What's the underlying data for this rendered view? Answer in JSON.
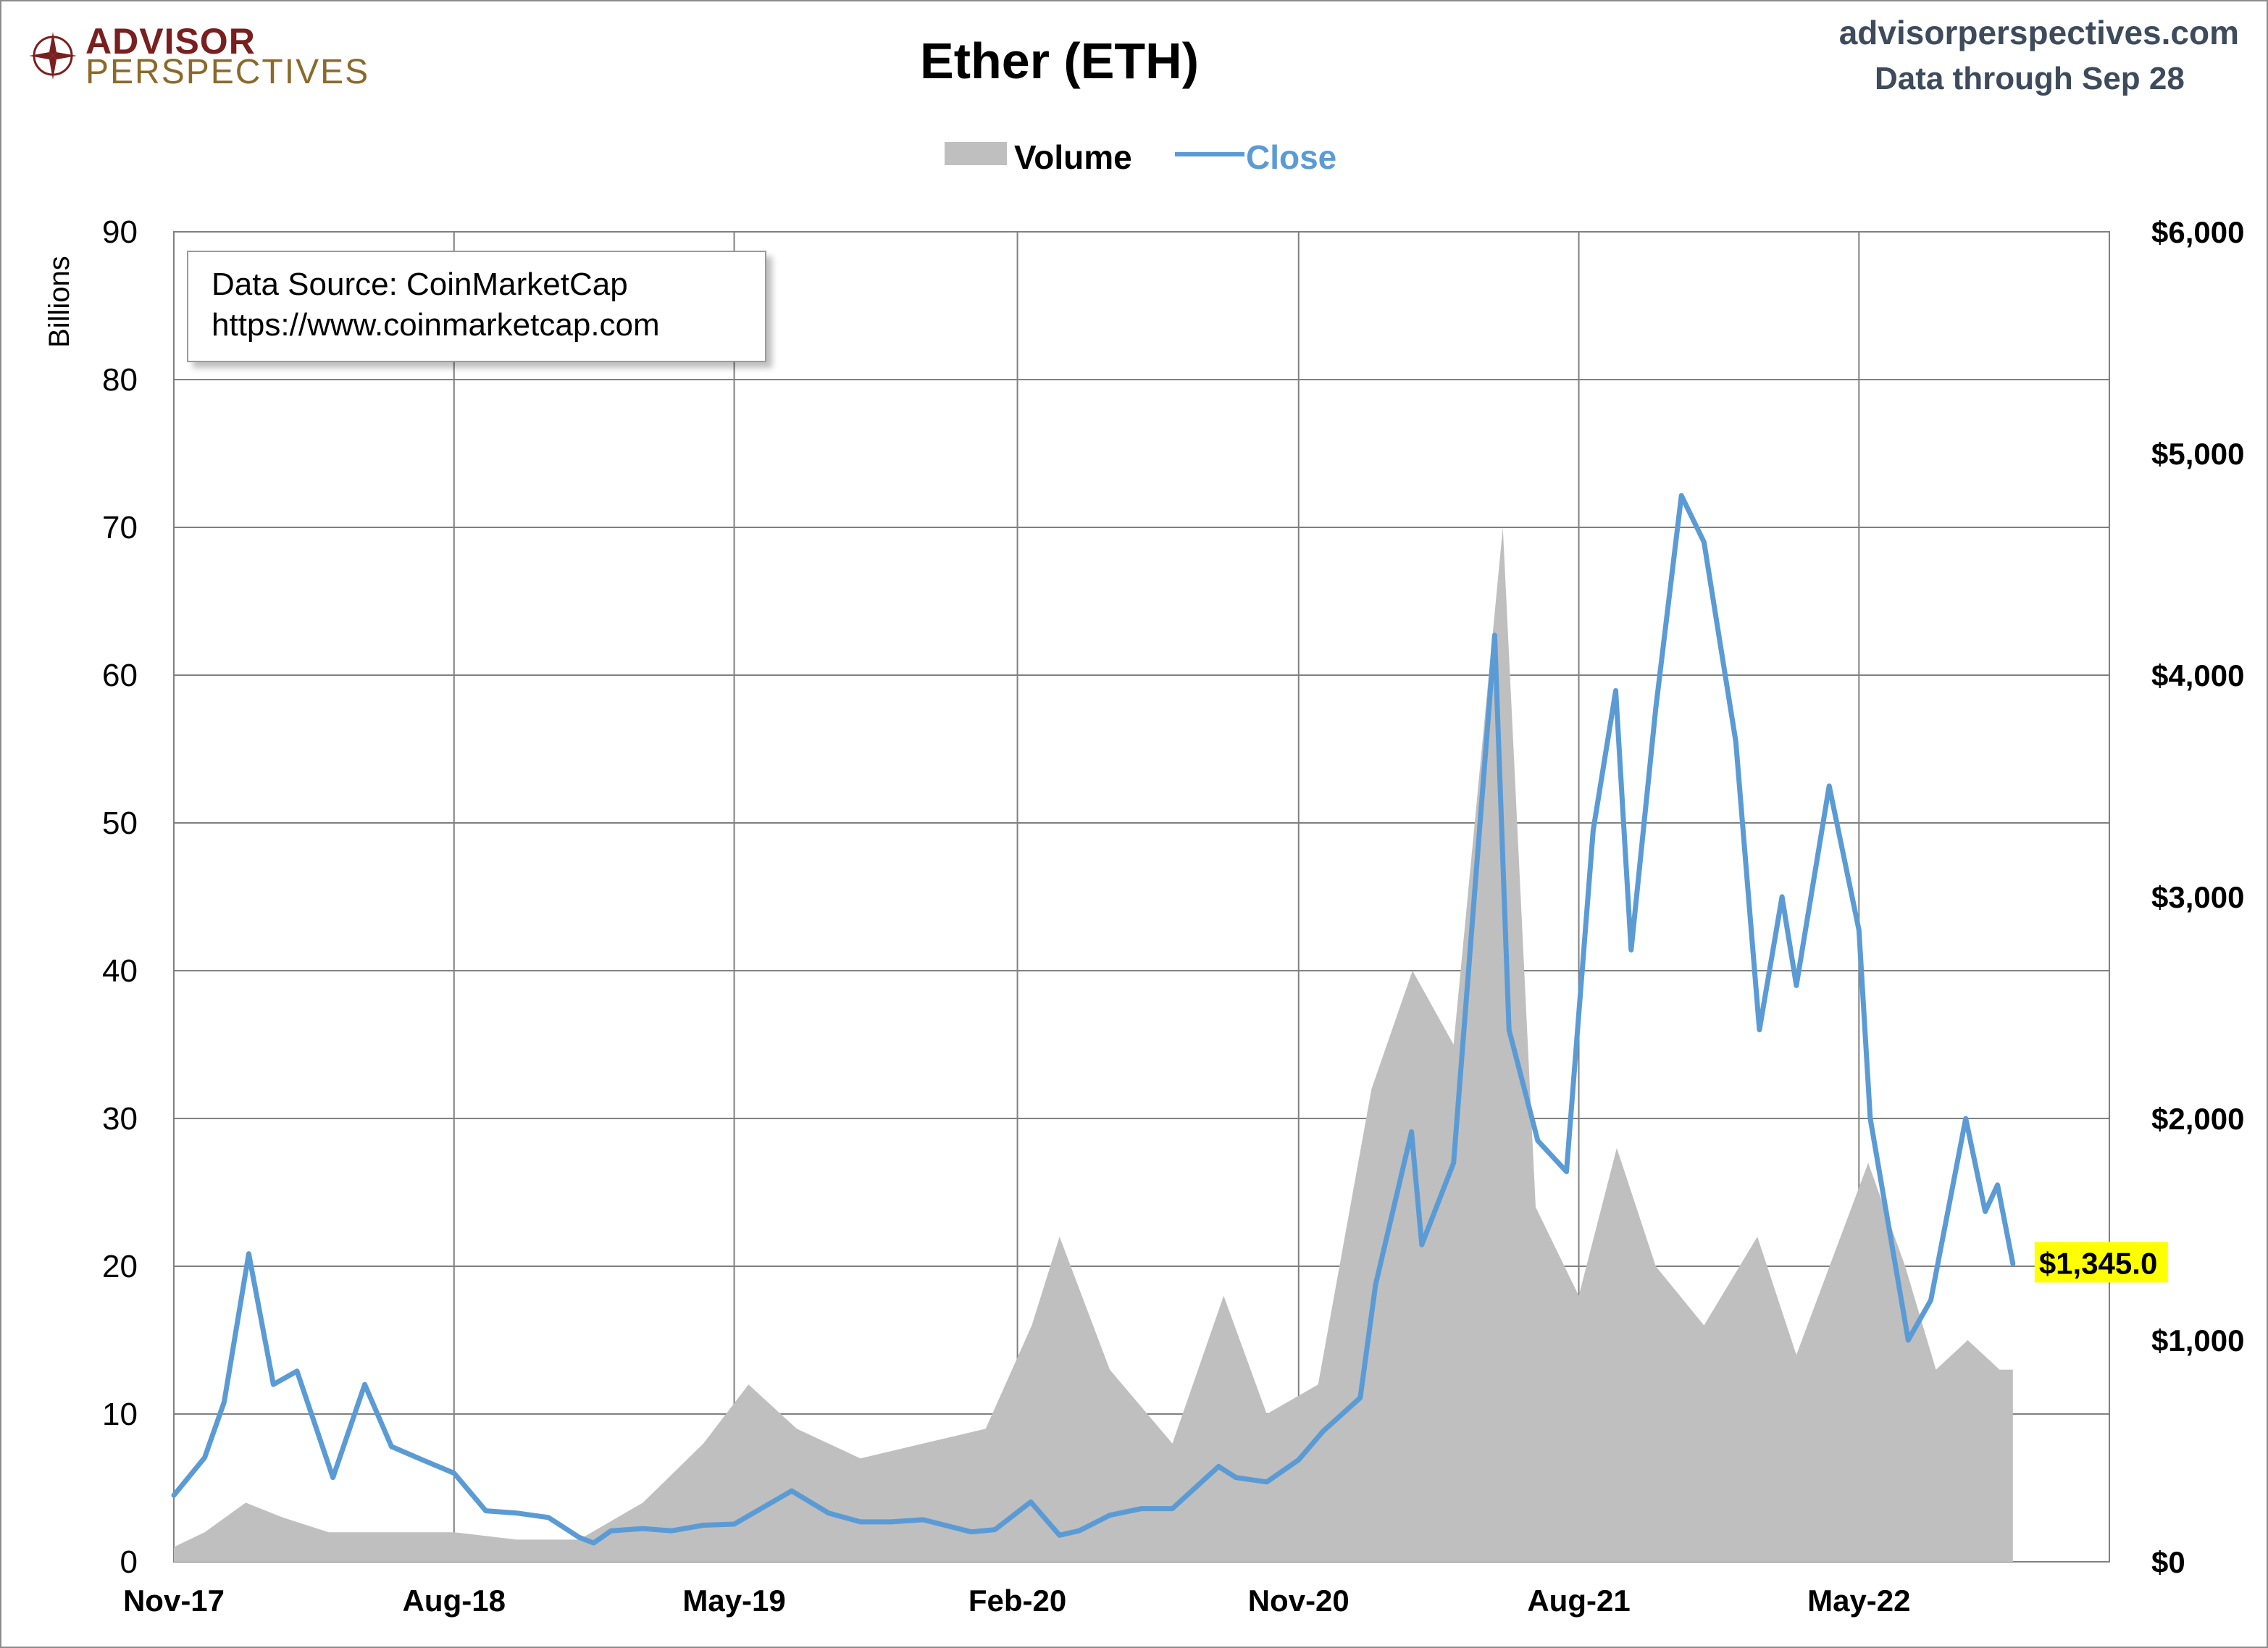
{
  "header": {
    "brand_top": "ADVISOR",
    "brand_bottom": "PERSPECTIVES",
    "title": "Ether (ETH)",
    "site": "advisorperspectives.com",
    "data_through": "Data through Sep 28"
  },
  "legend": {
    "volume": "Volume",
    "close": "Close"
  },
  "source_box": {
    "line1": "Data Source: CoinMarketCap",
    "line2": "https://www.coinmarketcap.com"
  },
  "colors": {
    "volume": "#bfbfbf",
    "close": "#5b9bd5",
    "grid": "#808080",
    "callout_bg": "#ffff00",
    "brand": "#7a1f1f"
  },
  "chart_data": {
    "type": "line",
    "xlabel": "",
    "ylabel_left": "Billions",
    "ylabel_right": "",
    "x_ticks": [
      "Nov-17",
      "Aug-18",
      "May-19",
      "Feb-20",
      "Nov-20",
      "Aug-21",
      "May-22"
    ],
    "y_left_ticks": [
      "0",
      "10",
      "20",
      "30",
      "40",
      "50",
      "60",
      "70",
      "80",
      "90"
    ],
    "y_right_ticks": [
      "$0",
      "$1,000",
      "$2,000",
      "$3,000",
      "$4,000",
      "$5,000",
      "$6,000"
    ],
    "ylim_left": [
      0,
      90
    ],
    "ylim_right": [
      0,
      6000
    ],
    "x_range": [
      "2017-11-01",
      "2022-12-31"
    ],
    "grid": true,
    "legend_position": "top-center",
    "series": [
      {
        "name": "Close",
        "axis": "right",
        "x": [
          "2017-11-01",
          "2017-12-01",
          "2017-12-20",
          "2018-01-13",
          "2018-02-06",
          "2018-03-01",
          "2018-04-05",
          "2018-05-06",
          "2018-06-01",
          "2018-07-01",
          "2018-08-01",
          "2018-09-01",
          "2018-10-01",
          "2018-11-01",
          "2018-12-01",
          "2018-12-15",
          "2019-01-01",
          "2019-02-01",
          "2019-03-01",
          "2019-04-01",
          "2019-05-01",
          "2019-06-26",
          "2019-08-01",
          "2019-09-01",
          "2019-10-01",
          "2019-11-01",
          "2019-12-18",
          "2020-01-10",
          "2020-02-14",
          "2020-03-13",
          "2020-04-01",
          "2020-05-01",
          "2020-06-01",
          "2020-07-01",
          "2020-08-15",
          "2020-09-01",
          "2020-10-01",
          "2020-11-01",
          "2020-11-25",
          "2020-12-31",
          "2021-01-15",
          "2021-02-19",
          "2021-03-01",
          "2021-04-01",
          "2021-05-11",
          "2021-05-25",
          "2021-06-22",
          "2021-07-20",
          "2021-08-15",
          "2021-09-06",
          "2021-09-21",
          "2021-10-15",
          "2021-11-09",
          "2021-12-01",
          "2022-01-01",
          "2022-01-24",
          "2022-02-15",
          "2022-03-01",
          "2022-04-02",
          "2022-05-01",
          "2022-05-12",
          "2022-06-18",
          "2022-07-10",
          "2022-08-13",
          "2022-09-01",
          "2022-09-13",
          "2022-09-28"
        ],
        "values": [
          300,
          470,
          720,
          1390,
          800,
          860,
          380,
          800,
          520,
          460,
          400,
          230,
          220,
          200,
          110,
          85,
          140,
          150,
          140,
          165,
          170,
          320,
          220,
          180,
          180,
          190,
          135,
          145,
          270,
          120,
          140,
          210,
          240,
          240,
          430,
          380,
          360,
          460,
          590,
          740,
          1250,
          1940,
          1430,
          1800,
          4180,
          2400,
          1900,
          1760,
          3300,
          3930,
          2760,
          3850,
          4810,
          4600,
          3700,
          2400,
          3000,
          2600,
          3500,
          2850,
          2000,
          1000,
          1180,
          2000,
          1580,
          1700,
          1345
        ]
      },
      {
        "name": "Volume",
        "axis": "left",
        "x": [
          "2017-11-01",
          "2017-12-01",
          "2018-01-10",
          "2018-02-15",
          "2018-04-01",
          "2018-06-01",
          "2018-08-01",
          "2018-10-01",
          "2018-12-01",
          "2019-02-01",
          "2019-04-01",
          "2019-05-15",
          "2019-07-01",
          "2019-09-01",
          "2019-11-01",
          "2020-01-01",
          "2020-02-15",
          "2020-03-13",
          "2020-05-01",
          "2020-07-01",
          "2020-08-20",
          "2020-10-01",
          "2020-11-20",
          "2021-01-11",
          "2021-02-20",
          "2021-04-01",
          "2021-05-19",
          "2021-06-20",
          "2021-08-01",
          "2021-09-07",
          "2021-10-15",
          "2021-12-01",
          "2022-01-22",
          "2022-03-01",
          "2022-05-10",
          "2022-06-15",
          "2022-07-15",
          "2022-08-15",
          "2022-09-15",
          "2022-09-28"
        ],
        "values": [
          1,
          2,
          4,
          3,
          2,
          2,
          2,
          1.5,
          1.5,
          4,
          8,
          12,
          9,
          7,
          8,
          9,
          16,
          22,
          13,
          8,
          18,
          10,
          12,
          32,
          40,
          35,
          70,
          24,
          18,
          28,
          20,
          16,
          22,
          14,
          27,
          20,
          13,
          15,
          13,
          13
        ]
      }
    ],
    "annotations": [
      {
        "text": "$1,345.0",
        "x": "2022-09-28",
        "value": 1345
      }
    ]
  }
}
